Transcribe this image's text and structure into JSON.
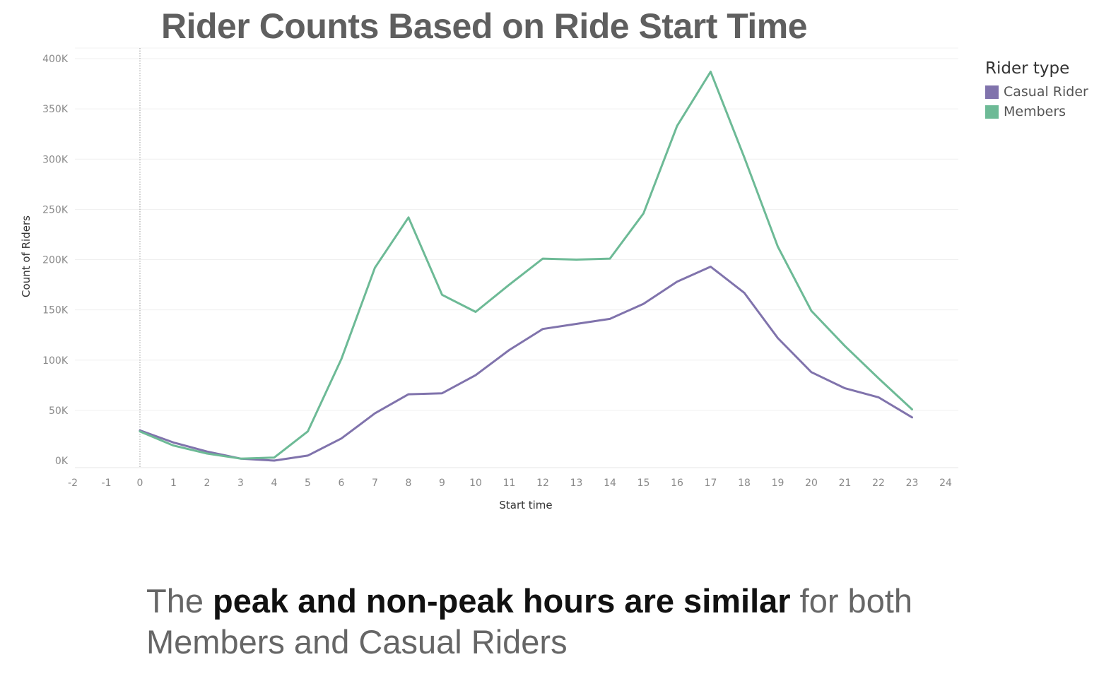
{
  "chart_data": {
    "type": "line",
    "title": "Rider Counts Based on Ride Start Time",
    "xlabel": "Start time",
    "ylabel": "Count of Riders",
    "xlim": [
      -2,
      24
    ],
    "ylim": [
      0,
      400000
    ],
    "x_ticks": [
      -2,
      -1,
      0,
      1,
      2,
      3,
      4,
      5,
      6,
      7,
      8,
      9,
      10,
      11,
      12,
      13,
      14,
      15,
      16,
      17,
      18,
      19,
      20,
      21,
      22,
      23,
      24
    ],
    "x_tick_labels": [
      "-2",
      "-1",
      "0",
      "1",
      "2",
      "3",
      "4",
      "5",
      "6",
      "7",
      "8",
      "9",
      "10",
      "11",
      "12",
      "13",
      "14",
      "15",
      "16",
      "17",
      "18",
      "19",
      "20",
      "21",
      "22",
      "23",
      "24"
    ],
    "y_ticks": [
      0,
      50000,
      100000,
      150000,
      200000,
      250000,
      300000,
      350000,
      400000
    ],
    "y_tick_labels": [
      "0K",
      "50K",
      "100K",
      "150K",
      "200K",
      "250K",
      "300K",
      "350K",
      "400K"
    ],
    "grid": "horizontal",
    "legend": {
      "title": "Rider type",
      "position": "top-right"
    },
    "x": [
      0,
      1,
      2,
      3,
      4,
      5,
      6,
      7,
      8,
      9,
      10,
      11,
      12,
      13,
      14,
      15,
      16,
      17,
      18,
      19,
      20,
      21,
      22,
      23
    ],
    "series": [
      {
        "name": "Casual Rider",
        "color": "#8073ac",
        "values": [
          30000,
          18000,
          9000,
          2000,
          0,
          5000,
          22000,
          47000,
          66000,
          67000,
          85000,
          110000,
          131000,
          136000,
          141000,
          156000,
          178000,
          193000,
          167000,
          122000,
          88000,
          72000,
          63000,
          43000
        ]
      },
      {
        "name": "Members",
        "color": "#6dba96",
        "values": [
          29000,
          15000,
          7000,
          2000,
          3000,
          29000,
          101000,
          192000,
          242000,
          165000,
          148000,
          175000,
          201000,
          200000,
          201000,
          246000,
          333000,
          387000,
          302000,
          213000,
          149000,
          114000,
          82000,
          51000
        ]
      }
    ]
  },
  "caption": {
    "prefix": "The ",
    "emphasis": "peak and non-peak hours are similar",
    "suffix": " for both Members and Casual Riders"
  }
}
